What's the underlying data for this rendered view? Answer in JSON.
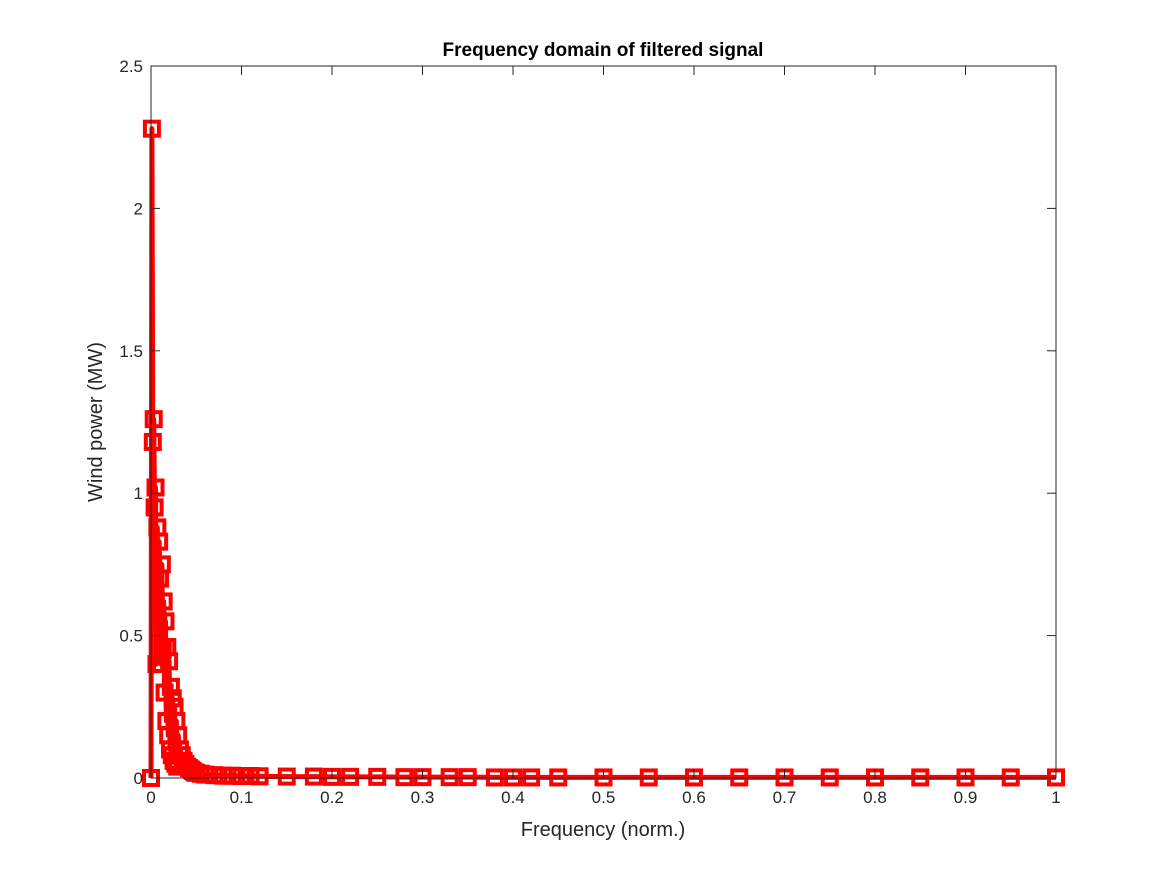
{
  "chart_data": {
    "type": "line",
    "title": "Frequency domain of filtered signal",
    "xlabel": "Frequency (norm.)",
    "ylabel": "Wind power (MW)",
    "xlim": [
      0,
      1
    ],
    "ylim": [
      0,
      2.5
    ],
    "xticks": [
      0,
      0.1,
      0.2,
      0.3,
      0.4,
      0.5,
      0.6,
      0.7,
      0.8,
      0.9,
      1
    ],
    "xtick_labels": [
      "0",
      "0.1",
      "0.2",
      "0.3",
      "0.4",
      "0.5",
      "0.6",
      "0.7",
      "0.8",
      "0.9",
      "1"
    ],
    "yticks": [
      0,
      0.5,
      1,
      1.5,
      2,
      2.5
    ],
    "ytick_labels": [
      "0",
      "0.5",
      "1",
      "1.5",
      "2",
      "2.5"
    ],
    "grid": false,
    "box": true,
    "series": [
      {
        "color": "#ff0000",
        "marker": "square",
        "x": [
          0.0,
          0.001,
          0.002,
          0.003,
          0.004,
          0.005,
          0.006,
          0.007,
          0.008,
          0.009,
          0.01,
          0.011,
          0.012,
          0.013,
          0.014,
          0.015,
          0.016,
          0.017,
          0.018,
          0.019,
          0.02,
          0.021,
          0.022,
          0.023,
          0.024,
          0.025,
          0.026,
          0.027,
          0.028,
          0.029,
          0.03,
          0.032,
          0.034,
          0.036,
          0.038,
          0.04,
          0.042,
          0.044,
          0.046,
          0.048,
          0.05,
          0.055,
          0.06,
          0.07,
          0.08,
          0.09,
          0.1,
          0.11,
          0.12,
          0.15,
          0.18,
          0.2,
          0.22,
          0.25,
          0.28,
          0.3,
          0.33,
          0.35,
          0.38,
          0.4,
          0.42,
          0.45,
          0.5,
          0.55,
          0.6,
          0.65,
          0.7,
          0.75,
          0.8,
          0.85,
          0.9,
          0.95,
          1.0
        ],
        "y": [
          0.0,
          2.28,
          1.18,
          1.26,
          0.95,
          1.02,
          0.4,
          0.88,
          0.55,
          0.83,
          0.7,
          0.4,
          0.75,
          0.45,
          0.62,
          0.3,
          0.55,
          0.2,
          0.46,
          0.15,
          0.41,
          0.1,
          0.32,
          0.08,
          0.28,
          0.06,
          0.25,
          0.05,
          0.2,
          0.04,
          0.15,
          0.1,
          0.08,
          0.06,
          0.05,
          0.04,
          0.035,
          0.03,
          0.025,
          0.02,
          0.018,
          0.015,
          0.012,
          0.01,
          0.008,
          0.008,
          0.007,
          0.007,
          0.006,
          0.005,
          0.005,
          0.004,
          0.004,
          0.004,
          0.003,
          0.003,
          0.003,
          0.003,
          0.002,
          0.002,
          0.002,
          0.002,
          0.002,
          0.002,
          0.002,
          0.002,
          0.002,
          0.002,
          0.002,
          0.002,
          0.002,
          0.002,
          0.002
        ]
      }
    ]
  }
}
